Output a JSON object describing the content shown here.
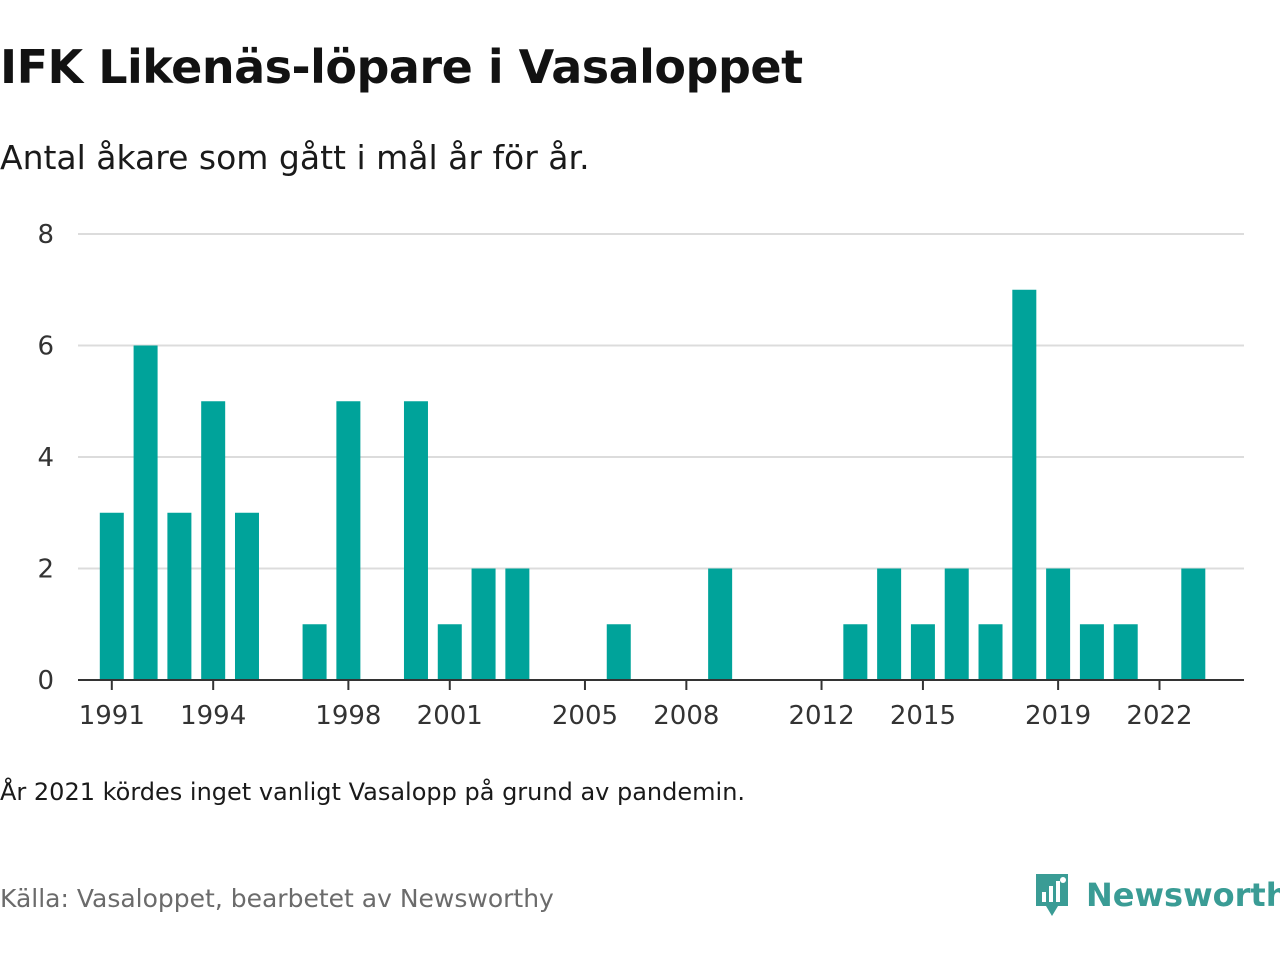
{
  "header": {
    "title": "IFK Likenäs-löpare i Vasaloppet",
    "subtitle": "Antal åkare som gått i mål år för år."
  },
  "footer": {
    "note": "År 2021 kördes inget vanligt Vasalopp på grund av pandemin.",
    "source": "Källa: Vasaloppet, bearbetet av Newsworthy",
    "brand": "Newsworthy",
    "brand_icon": "newsworthy-logo-icon"
  },
  "colors": {
    "bar": "#00a39a",
    "grid": "#dcdcdc",
    "axis": "#333333",
    "brand": "#3a9c95"
  },
  "chart_data": {
    "type": "bar",
    "categories": [
      1991,
      1992,
      1993,
      1994,
      1995,
      1997,
      1998,
      2000,
      2001,
      2002,
      2003,
      2006,
      2009,
      2013,
      2014,
      2015,
      2016,
      2017,
      2018,
      2019,
      2020,
      2021,
      2023
    ],
    "values": [
      3,
      6,
      3,
      5,
      3,
      1,
      5,
      5,
      1,
      2,
      2,
      1,
      2,
      1,
      2,
      1,
      2,
      1,
      7,
      2,
      1,
      1,
      2
    ],
    "x_ticks": [
      1991,
      1994,
      1998,
      2001,
      2005,
      2008,
      2012,
      2015,
      2019,
      2022
    ],
    "xlim": [
      1990,
      2024.5
    ],
    "y_ticks": [
      0,
      2,
      4,
      6,
      8
    ],
    "ylim": [
      0,
      8
    ],
    "grid": true,
    "xlabel": "",
    "ylabel": ""
  }
}
